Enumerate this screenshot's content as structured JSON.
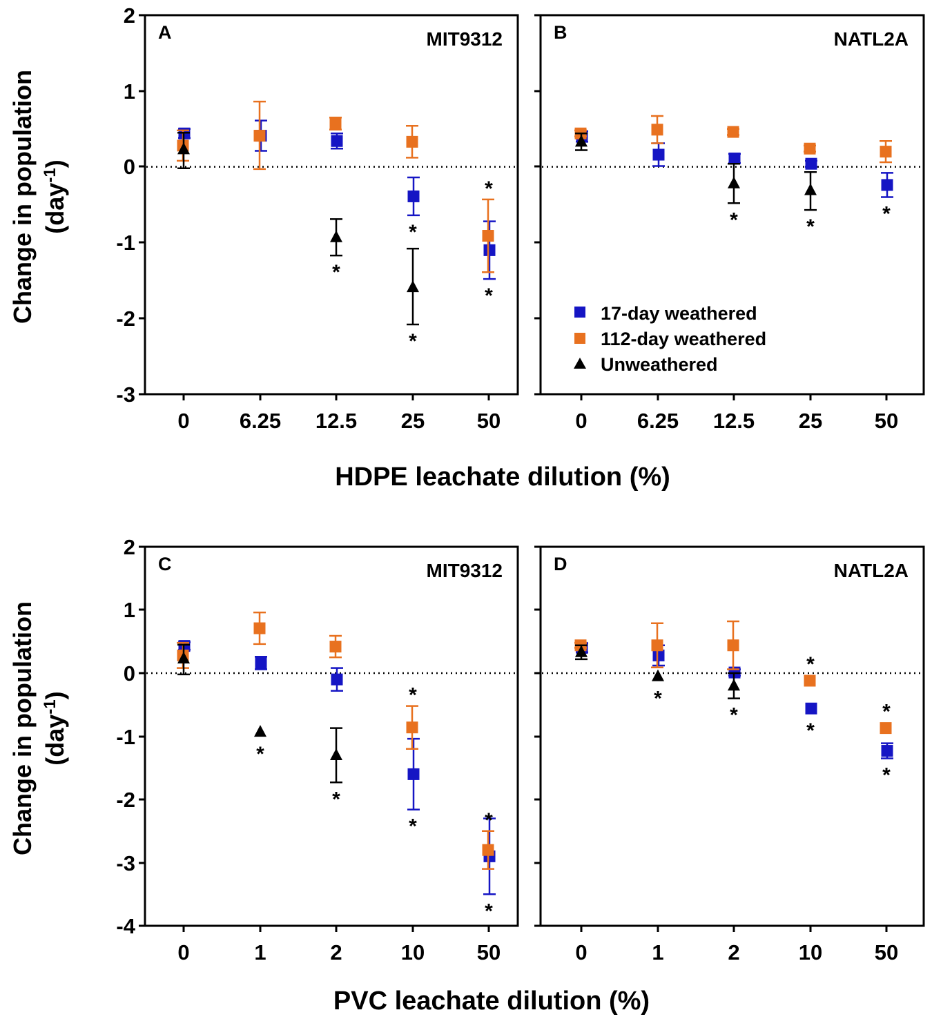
{
  "figure": {
    "y_axis_label": "Change in population",
    "y_axis_unit": "(day-1)",
    "y_axis_unit_base": "(day",
    "y_axis_unit_sup": "-1",
    "y_axis_unit_close": ")",
    "top_xlabel": "HDPE leachate dilution (%)",
    "bottom_xlabel": "PVC leachate dilution (%)"
  },
  "legend": {
    "items": [
      {
        "label": "17-day weathered",
        "color": "#1515c4",
        "marker": "square"
      },
      {
        "label": "112-day weathered",
        "color": "#e8711f",
        "marker": "square"
      },
      {
        "label": "Unweathered",
        "color": "#000000",
        "marker": "triangle"
      }
    ]
  },
  "chart_data": [
    {
      "panel": "A",
      "strain": "MIT9312",
      "type": "scatter",
      "categories": [
        "0",
        "6.25",
        "12.5",
        "25",
        "50"
      ],
      "xlabel": "HDPE leachate dilution (%)",
      "ylabel": "Change in population (day-1)",
      "ylim": [
        -3,
        2
      ],
      "yticks": [
        "2",
        "1",
        "0",
        "-1",
        "-2",
        "-3"
      ],
      "series": [
        {
          "name": "17-day weathered",
          "color": "#1515c4",
          "values": [
            0.44,
            0.41,
            0.34,
            -0.39,
            -1.1
          ],
          "lo": [
            0.38,
            0.21,
            0.24,
            -0.64,
            -1.48
          ],
          "hi": [
            0.5,
            0.61,
            0.44,
            -0.14,
            -0.72
          ],
          "sig": [
            "",
            "",
            "",
            "below",
            "below"
          ]
        },
        {
          "name": "112-day weathered",
          "color": "#e8711f",
          "values": [
            0.28,
            0.41,
            0.57,
            0.33,
            -0.91
          ],
          "lo": [
            0.08,
            -0.03,
            0.49,
            0.12,
            -1.39
          ],
          "hi": [
            0.48,
            0.86,
            0.65,
            0.54,
            -0.43
          ],
          "sig": [
            "",
            "",
            "",
            "",
            "above"
          ]
        },
        {
          "name": "Unweathered",
          "color": "#000000",
          "values": [
            0.23,
            null,
            -0.93,
            -1.59,
            null
          ],
          "lo": [
            -0.02,
            null,
            -1.17,
            -2.08,
            null
          ],
          "hi": [
            0.45,
            null,
            -0.69,
            -1.08,
            null
          ],
          "sig": [
            "",
            "",
            "below",
            "below",
            ""
          ]
        }
      ]
    },
    {
      "panel": "B",
      "strain": "NATL2A",
      "type": "scatter",
      "categories": [
        "0",
        "6.25",
        "12.5",
        "25",
        "50"
      ],
      "xlabel": "HDPE leachate dilution (%)",
      "ylabel": "Change in population (day-1)",
      "ylim": [
        -3,
        2
      ],
      "yticks": [
        "2",
        "1",
        "0",
        "-1",
        "-2",
        "-3"
      ],
      "series": [
        {
          "name": "17-day weathered",
          "color": "#1515c4",
          "values": [
            0.4,
            0.16,
            0.11,
            0.04,
            -0.24
          ],
          "lo": [
            0.33,
            0.01,
            0.05,
            0.0,
            -0.4
          ],
          "hi": [
            0.47,
            0.31,
            0.17,
            0.08,
            -0.08
          ],
          "sig": [
            "",
            "",
            "",
            "",
            "below"
          ]
        },
        {
          "name": "112-day weathered",
          "color": "#e8711f",
          "values": [
            0.44,
            0.49,
            0.46,
            0.24,
            0.2
          ],
          "lo": [
            0.4,
            0.31,
            0.42,
            0.2,
            0.06
          ],
          "hi": [
            0.48,
            0.67,
            0.5,
            0.28,
            0.34
          ],
          "sig": [
            "",
            "",
            "",
            "",
            ""
          ]
        },
        {
          "name": "Unweathered",
          "color": "#000000",
          "values": [
            0.33,
            null,
            -0.22,
            -0.31,
            null
          ],
          "lo": [
            0.22,
            null,
            -0.48,
            -0.57,
            null
          ],
          "hi": [
            0.44,
            null,
            0.04,
            -0.07,
            null
          ],
          "sig": [
            "",
            "",
            "below",
            "below",
            ""
          ]
        }
      ]
    },
    {
      "panel": "C",
      "strain": "MIT9312",
      "type": "scatter",
      "categories": [
        "0",
        "1",
        "2",
        "10",
        "50"
      ],
      "xlabel": "PVC leachate dilution (%)",
      "ylabel": "Change in population (day-1)",
      "ylim": [
        -4,
        2
      ],
      "yticks": [
        "2",
        "1",
        "0",
        "-1",
        "-2",
        "-3",
        "-4"
      ],
      "series": [
        {
          "name": "17-day weathered",
          "color": "#1515c4",
          "values": [
            0.43,
            0.16,
            -0.1,
            -1.6,
            -2.9
          ],
          "lo": [
            0.37,
            0.06,
            -0.28,
            -2.16,
            -3.5
          ],
          "hi": [
            0.49,
            0.26,
            0.08,
            -1.04,
            -2.3
          ],
          "sig": [
            "",
            "",
            "",
            "below",
            "below"
          ]
        },
        {
          "name": "112-day weathered",
          "color": "#e8711f",
          "values": [
            0.28,
            0.71,
            0.42,
            -0.86,
            -2.8
          ],
          "lo": [
            0.08,
            0.46,
            0.25,
            -1.2,
            -3.1
          ],
          "hi": [
            0.48,
            0.96,
            0.59,
            -0.52,
            -2.5
          ],
          "sig": [
            "",
            "",
            "",
            "above",
            "above"
          ]
        },
        {
          "name": "Unweathered",
          "color": "#000000",
          "values": [
            0.23,
            -0.93,
            -1.3,
            null,
            null
          ],
          "lo": [
            -0.02,
            null,
            -1.73,
            null,
            null
          ],
          "hi": [
            0.45,
            null,
            -0.87,
            null,
            null
          ],
          "sig": [
            "",
            "below",
            "below",
            "",
            ""
          ]
        }
      ]
    },
    {
      "panel": "D",
      "strain": "NATL2A",
      "type": "scatter",
      "categories": [
        "0",
        "1",
        "2",
        "10",
        "50"
      ],
      "xlabel": "PVC leachate dilution (%)",
      "ylabel": "Change in population (day-1)",
      "ylim": [
        -4,
        2
      ],
      "yticks": [
        "2",
        "1",
        "0",
        "-1",
        "-2",
        "-3",
        "-4"
      ],
      "series": [
        {
          "name": "17-day weathered",
          "color": "#1515c4",
          "values": [
            0.4,
            0.28,
            0.01,
            -0.56,
            -1.23
          ],
          "lo": [
            0.33,
            0.12,
            -0.04,
            -0.56,
            -1.35
          ],
          "hi": [
            0.47,
            0.44,
            0.06,
            -0.56,
            -1.11
          ],
          "sig": [
            "",
            "",
            "",
            "below",
            "below"
          ]
        },
        {
          "name": "112-day weathered",
          "color": "#e8711f",
          "values": [
            0.44,
            0.44,
            0.44,
            -0.12,
            -0.87
          ],
          "lo": [
            0.4,
            0.09,
            0.06,
            -0.12,
            -0.87
          ],
          "hi": [
            0.48,
            0.79,
            0.82,
            -0.12,
            -0.87
          ],
          "sig": [
            "",
            "",
            "",
            "above",
            "above"
          ]
        },
        {
          "name": "Unweathered",
          "color": "#000000",
          "values": [
            0.33,
            -0.05,
            -0.2,
            null,
            null
          ],
          "lo": [
            0.22,
            null,
            -0.4,
            null,
            null
          ],
          "hi": [
            0.44,
            null,
            0.0,
            null,
            null
          ],
          "sig": [
            "",
            "below",
            "below",
            "",
            ""
          ]
        }
      ]
    }
  ]
}
